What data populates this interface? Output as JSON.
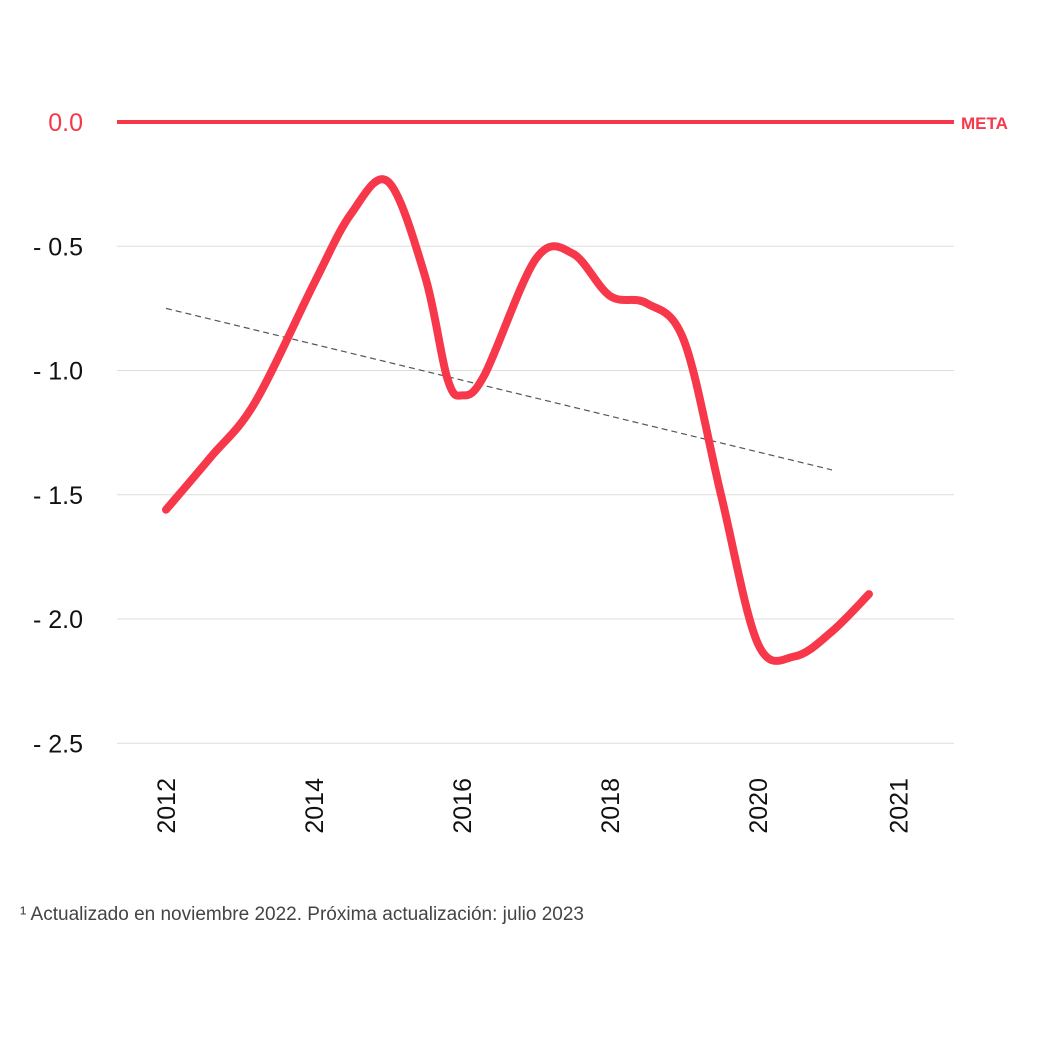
{
  "chart_data": {
    "type": "line",
    "x": [
      2012.0,
      2012.6,
      2013.2,
      2014.0,
      2014.5,
      2015.0,
      2015.5,
      2015.8,
      2016.0,
      2016.3,
      2017.0,
      2017.5,
      2018.0,
      2018.5,
      2019.0,
      2019.5,
      2020.0,
      2020.5,
      2021.0,
      2021.5
    ],
    "series": [
      {
        "values": [
          -1.56,
          -1.35,
          -1.13,
          -0.65,
          -0.37,
          -0.24,
          -0.62,
          -1.03,
          -1.1,
          -1.02,
          -0.55,
          -0.53,
          -0.7,
          -0.73,
          -0.88,
          -1.5,
          -2.1,
          -2.15,
          -2.05,
          -1.9
        ],
        "color": "#f7374a"
      }
    ],
    "trend": {
      "x": [
        2012.0,
        2021.0
      ],
      "y": [
        -0.75,
        -1.4
      ],
      "style": "dashed",
      "color": "#555555"
    },
    "goal": {
      "value": 0.0,
      "label": "META",
      "color": "#f7374a"
    },
    "yticks": [
      {
        "value": 0.0,
        "label": "0.0",
        "color": "#f7374a"
      },
      {
        "value": -0.5,
        "label": "- 0.5",
        "color": "#111111"
      },
      {
        "value": -1.0,
        "label": "- 1.0",
        "color": "#111111"
      },
      {
        "value": -1.5,
        "label": "- 1.5",
        "color": "#111111"
      },
      {
        "value": -2.0,
        "label": "- 2.0",
        "color": "#111111"
      },
      {
        "value": -2.5,
        "label": "- 2.5",
        "color": "#111111"
      }
    ],
    "xticks": [
      {
        "value": 2012,
        "label": "2012"
      },
      {
        "value": 2014,
        "label": "2014"
      },
      {
        "value": 2016,
        "label": "2016"
      },
      {
        "value": 2018,
        "label": "2018"
      },
      {
        "value": 2020,
        "label": "2020"
      },
      {
        "value": 2021.9,
        "label": "2021"
      }
    ],
    "ylim": [
      -2.5,
      0.0
    ],
    "grid": true,
    "gridColor": "#dddddd"
  },
  "footnote": "¹ Actualizado en noviembre 2022. Próxima actualización: julio 2023"
}
